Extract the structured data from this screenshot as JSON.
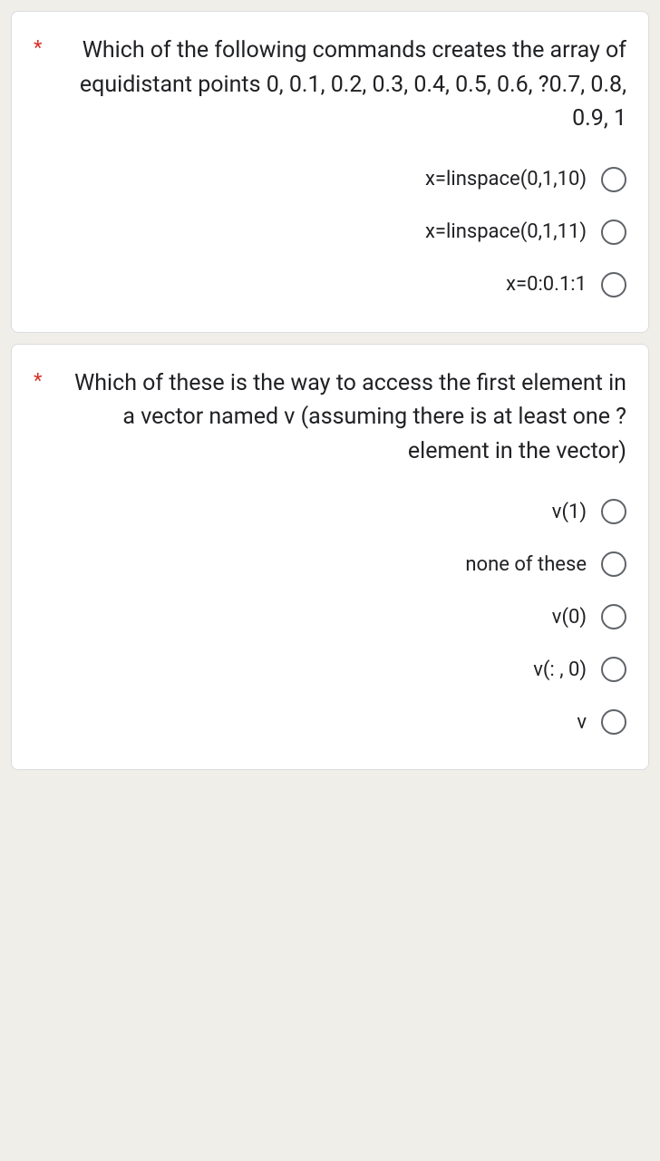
{
  "questions": [
    {
      "required_marker": "*",
      "text": "Which of the following commands creates the array of equidistant points 0, 0.1, 0.2, 0.3, 0.4, 0.5, 0.6, ?0.7, 0.8, 0.9, 1",
      "options": [
        {
          "label": "x=linspace(0,1,10)"
        },
        {
          "label": "x=linspace(0,1,11)"
        },
        {
          "label": "x=0:0.1:1"
        }
      ]
    },
    {
      "required_marker": "*",
      "text": "Which of these is the way to access the first element in a vector named v (assuming there is at least one ?element in the vector)",
      "options": [
        {
          "label": "v(1)"
        },
        {
          "label": "none of these"
        },
        {
          "label": "v(0)"
        },
        {
          "label": "v(: , 0)"
        },
        {
          "label": "v"
        }
      ]
    }
  ],
  "colors": {
    "background": "#f0eee9",
    "card_background": "#ffffff",
    "card_border": "#dadce0",
    "text_primary": "#202124",
    "required_star": "#d93025",
    "radio_border": "#5f6368"
  },
  "typography": {
    "question_fontsize": 25,
    "option_fontsize": 22,
    "font_family": "Google Sans, Roboto, Arial, sans-serif"
  }
}
